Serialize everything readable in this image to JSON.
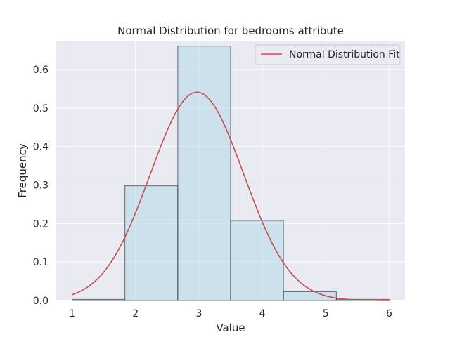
{
  "chart_data": {
    "type": "bar",
    "title": "Normal Distribution for bedrooms attribute",
    "xlabel": "Value",
    "ylabel": "Frequency",
    "xlim": [
      0.75,
      6.25
    ],
    "ylim": [
      0,
      0.675
    ],
    "xticks": [
      1,
      2,
      3,
      4,
      5,
      6
    ],
    "yticks": [
      0.0,
      0.1,
      0.2,
      0.3,
      0.4,
      0.5,
      0.6
    ],
    "grid": true,
    "legend_position": "top-right",
    "histogram": {
      "bins": [
        {
          "x0": 1.0,
          "x1": 1.833,
          "value": 0.003
        },
        {
          "x0": 1.833,
          "x1": 2.667,
          "value": 0.298
        },
        {
          "x0": 2.667,
          "x1": 3.5,
          "value": 0.661
        },
        {
          "x0": 3.5,
          "x1": 4.333,
          "value": 0.208
        },
        {
          "x0": 4.333,
          "x1": 5.167,
          "value": 0.023
        },
        {
          "x0": 5.167,
          "x1": 6.0,
          "value": 0.003
        }
      ],
      "color": "#add8e6"
    },
    "series": [
      {
        "name": "Normal Distribution Fit",
        "type": "line",
        "color": "#c44e52",
        "mean": 2.97,
        "std": 0.737,
        "x_range": [
          1,
          6
        ]
      }
    ]
  }
}
